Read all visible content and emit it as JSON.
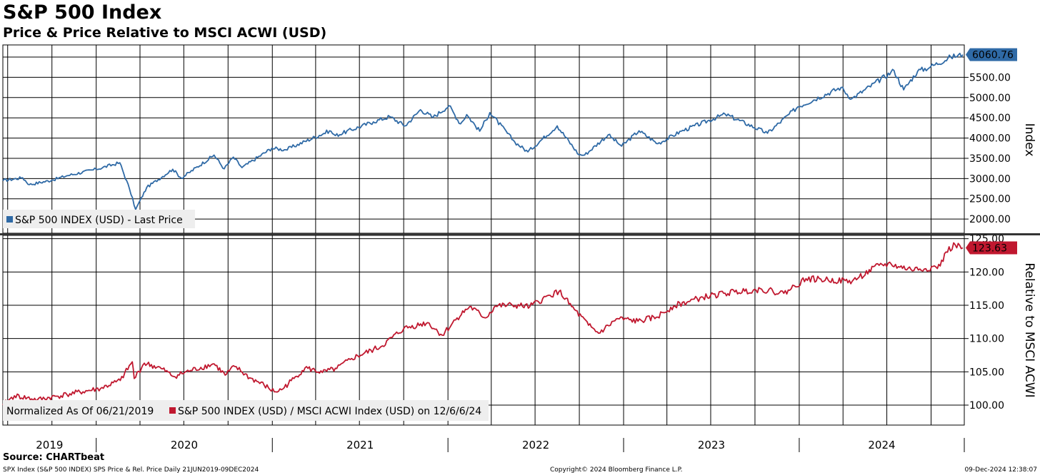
{
  "header": {
    "title": "S&P 500 Index",
    "subtitle": "Price & Price Relative to MSCI ACWI (USD)"
  },
  "footer": {
    "source": "Source: CHARTbeat",
    "left": "SPX Index (S&P 500 INDEX) SPS Price & Rel. Price  Daily 21JUN2019-09DEC2024",
    "center": "Copyright© 2024 Bloomberg Finance L.P.",
    "right": "09-Dec-2024 12:38:07"
  },
  "colors": {
    "price": "#2f6aa6",
    "relative": "#c0182f",
    "grid": "#000000"
  },
  "chart_data": [
    {
      "type": "line",
      "ylabel": "Index",
      "ylim": [
        1650,
        6300
      ],
      "yticks": [
        "2000.00",
        "2500.00",
        "3000.00",
        "3500.00",
        "4000.00",
        "4500.00",
        "5000.00",
        "5500.00"
      ],
      "last_value_label": "6060.76",
      "legend": {
        "label": "S&P 500 INDEX (USD) - Last Price",
        "placement": "bottom-left"
      },
      "series": [
        {
          "name": "S&P 500 INDEX (USD) - Last Price",
          "x": [
            "2019-06-21",
            "2019-08-01",
            "2019-08-15",
            "2019-10-01",
            "2019-11-01",
            "2020-01-01",
            "2020-02-19",
            "2020-03-10",
            "2020-03-23",
            "2020-04-15",
            "2020-06-08",
            "2020-06-26",
            "2020-09-02",
            "2020-09-23",
            "2020-10-12",
            "2020-10-30",
            "2020-12-31",
            "2021-01-29",
            "2021-04-30",
            "2021-05-12",
            "2021-07-30",
            "2021-09-02",
            "2021-10-04",
            "2021-11-05",
            "2021-12-01",
            "2022-01-03",
            "2022-01-27",
            "2022-02-09",
            "2022-03-08",
            "2022-03-29",
            "2022-05-20",
            "2022-06-16",
            "2022-08-16",
            "2022-09-30",
            "2022-10-12",
            "2022-11-30",
            "2022-12-28",
            "2023-02-02",
            "2023-03-13",
            "2023-05-01",
            "2023-07-31",
            "2023-10-27",
            "2023-12-29",
            "2024-03-28",
            "2024-04-19",
            "2024-07-16",
            "2024-08-05",
            "2024-09-03",
            "2024-09-30",
            "2024-11-11",
            "2024-12-06"
          ],
          "values": [
            2950,
            3020,
            2850,
            2960,
            3070,
            3230,
            3390,
            2750,
            2237,
            2780,
            3230,
            3010,
            3580,
            3240,
            3530,
            3270,
            3750,
            3710,
            4180,
            4060,
            4400,
            4530,
            4300,
            4700,
            4510,
            4800,
            4350,
            4580,
            4170,
            4630,
            3900,
            3660,
            4300,
            3590,
            3580,
            4080,
            3800,
            4180,
            3860,
            4170,
            4590,
            4120,
            4770,
            5250,
            4970,
            5670,
            5190,
            5650,
            5760,
            6000,
            6060.76
          ]
        }
      ]
    },
    {
      "type": "line",
      "ylabel": "Relative to MSCI ACWI",
      "ylim": [
        97,
        125.5
      ],
      "yticks": [
        "100.00",
        "105.00",
        "110.00",
        "115.00",
        "120.00",
        "125.00"
      ],
      "last_value_label": "123.63",
      "legend": {
        "note": "Normalized As Of 06/21/2019",
        "label": "S&P 500 INDEX (USD) / MSCI ACWI Index (USD) on 12/6/6/24",
        "placement": "bottom-left"
      },
      "series": [
        {
          "name": "S&P 500 INDEX (USD) / MSCI ACWI Index (USD) on 12/6/24",
          "x": [
            "2019-06-21",
            "2019-07-15",
            "2019-09-01",
            "2019-11-01",
            "2020-01-10",
            "2020-02-20",
            "2020-03-16",
            "2020-03-20",
            "2020-04-10",
            "2020-05-15",
            "2020-06-10",
            "2020-07-15",
            "2020-09-02",
            "2020-09-25",
            "2020-10-15",
            "2020-11-15",
            "2020-12-15",
            "2021-01-05",
            "2021-01-20",
            "2021-02-15",
            "2021-03-10",
            "2021-04-15",
            "2021-05-15",
            "2021-06-15",
            "2021-08-15",
            "2021-10-01",
            "2021-11-20",
            "2021-12-20",
            "2022-01-20",
            "2022-02-15",
            "2022-03-20",
            "2022-04-10",
            "2022-05-15",
            "2022-06-20",
            "2022-08-01",
            "2022-08-20",
            "2022-09-15",
            "2022-10-20",
            "2022-11-10",
            "2022-12-20",
            "2023-01-31",
            "2023-03-10",
            "2023-04-15",
            "2023-06-15",
            "2023-07-31",
            "2023-08-20",
            "2023-10-15",
            "2023-11-30",
            "2024-01-15",
            "2024-03-01",
            "2024-04-20",
            "2024-06-15",
            "2024-07-10",
            "2024-07-25",
            "2024-08-20",
            "2024-09-20",
            "2024-10-20",
            "2024-11-01",
            "2024-11-20",
            "2024-12-06"
          ],
          "values": [
            100,
            101.4,
            100.8,
            101.6,
            102.5,
            103.7,
            106.5,
            104.0,
            106.3,
            105.5,
            104.3,
            105.2,
            106.2,
            104.5,
            105.8,
            104.1,
            103.0,
            102.0,
            102.3,
            104.0,
            105.6,
            104.9,
            105.5,
            107.0,
            108.8,
            111.5,
            112.4,
            110.5,
            113.1,
            114.8,
            113.1,
            114.9,
            115.0,
            114.8,
            116.5,
            117.1,
            114.8,
            112.0,
            110.8,
            113.0,
            112.6,
            113.2,
            114.9,
            116.2,
            116.8,
            117.0,
            117.4,
            116.8,
            119.0,
            118.8,
            118.6,
            121.0,
            121.2,
            120.8,
            120.4,
            120.5,
            120.9,
            123.0,
            124.1,
            123.63
          ]
        }
      ]
    }
  ],
  "x_axis": {
    "labels": [
      "2019",
      "2020",
      "2021",
      "2022",
      "2023",
      "2024"
    ],
    "range": [
      "2019-06-21",
      "2024-12-09"
    ]
  }
}
